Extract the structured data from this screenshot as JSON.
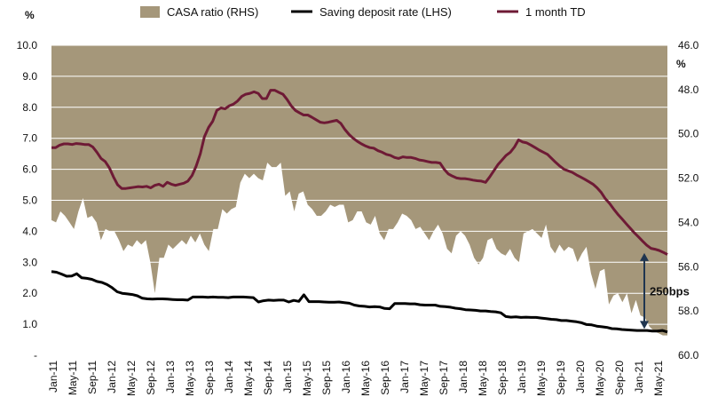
{
  "colors": {
    "casa_fill": "#a5977a",
    "saving_line": "#000000",
    "td_line": "#6e1a35",
    "grid": "#ffffff",
    "arrow": "#1f3550"
  },
  "chart_data": {
    "type": "line",
    "legend": {
      "placement": "top",
      "items": [
        "CASA ratio (RHS)",
        "Saving deposit rate (LHS)",
        "1 month TD"
      ]
    },
    "left_axis": {
      "unit": "%",
      "ylim": [
        0,
        10
      ],
      "tick_labels": [
        "-",
        "1.0",
        "2.0",
        "3.0",
        "4.0",
        "5.0",
        "6.0",
        "7.0",
        "8.0",
        "9.0",
        "10.0"
      ]
    },
    "right_axis": {
      "unit": "%",
      "ylim": [
        46,
        60
      ],
      "inverted": true,
      "tick_labels": [
        "46.0",
        "48.0",
        "50.0",
        "52.0",
        "54.0",
        "56.0",
        "58.0",
        "60.0"
      ]
    },
    "x_tick_labels": [
      "Jan-11",
      "May-11",
      "Sep-11",
      "Jan-12",
      "May-12",
      "Sep-12",
      "Jan-13",
      "May-13",
      "Sep-13",
      "Jan-14",
      "May-14",
      "Sep-14",
      "Jan-15",
      "May-15",
      "Sep-15",
      "Jan-16",
      "May-16",
      "Sep-16",
      "Jan-17",
      "May-17",
      "Sep-17",
      "Jan-18",
      "May-18",
      "Sep-18",
      "Jan-19",
      "May-19",
      "Sep-19",
      "Jan-20",
      "May-20",
      "Sep-20",
      "Jan-21",
      "May-21"
    ],
    "annotation": {
      "text": "250bps",
      "from": 3.3,
      "to": 0.85
    },
    "series": [
      {
        "name": "CASA ratio (RHS)",
        "type": "area",
        "axis": "right",
        "values": [
          53.9,
          54.0,
          53.5,
          53.7,
          54.0,
          54.3,
          53.5,
          52.9,
          53.8,
          53.7,
          54.0,
          54.8,
          54.3,
          54.4,
          54.4,
          54.8,
          55.3,
          55.0,
          55.1,
          54.8,
          55.0,
          54.8,
          55.8,
          57.2,
          55.6,
          55.6,
          55.0,
          55.2,
          55.0,
          54.8,
          55.0,
          54.6,
          54.9,
          54.5,
          55.0,
          55.3,
          54.3,
          54.3,
          53.4,
          53.6,
          53.4,
          53.3,
          52.2,
          51.8,
          52.0,
          51.8,
          52.0,
          52.1,
          51.3,
          51.5,
          51.5,
          51.3,
          52.8,
          52.6,
          53.5,
          52.7,
          52.6,
          53.2,
          53.4,
          53.7,
          53.7,
          53.5,
          53.2,
          53.3,
          53.2,
          53.2,
          54.0,
          53.9,
          53.5,
          53.5,
          54.0,
          54.1,
          53.7,
          54.5,
          54.8,
          54.3,
          54.3,
          54.0,
          53.6,
          53.7,
          53.9,
          54.3,
          54.2,
          54.5,
          54.8,
          54.4,
          54.1,
          54.5,
          55.2,
          55.4,
          54.6,
          54.4,
          54.6,
          55.0,
          55.6,
          55.9,
          55.6,
          54.8,
          54.7,
          55.2,
          55.4,
          55.5,
          55.2,
          55.6,
          55.8,
          54.5,
          54.4,
          54.3,
          54.5,
          54.7,
          54.1,
          55.1,
          55.4,
          55.0,
          55.3,
          55.1,
          55.2,
          55.8,
          55.4,
          55.1,
          56.3,
          57.0,
          56.2,
          56.1,
          57.7,
          57.3,
          57.2,
          57.6,
          57.2,
          58.1,
          57.5,
          58.2,
          58.3,
          58.7,
          58.9,
          59.0,
          59.1,
          59.1
        ]
      },
      {
        "name": "Saving deposit rate (LHS)",
        "type": "line",
        "axis": "left",
        "values": [
          2.7,
          2.68,
          2.62,
          2.55,
          2.56,
          2.63,
          2.5,
          2.48,
          2.45,
          2.38,
          2.35,
          2.28,
          2.18,
          2.05,
          2.0,
          1.98,
          1.96,
          1.92,
          1.84,
          1.82,
          1.81,
          1.82,
          1.82,
          1.81,
          1.8,
          1.79,
          1.79,
          1.78,
          1.88,
          1.88,
          1.88,
          1.87,
          1.88,
          1.87,
          1.87,
          1.86,
          1.88,
          1.88,
          1.88,
          1.87,
          1.86,
          1.72,
          1.76,
          1.78,
          1.77,
          1.78,
          1.78,
          1.72,
          1.77,
          1.74,
          1.95,
          1.73,
          1.73,
          1.73,
          1.72,
          1.71,
          1.71,
          1.72,
          1.7,
          1.68,
          1.62,
          1.59,
          1.58,
          1.56,
          1.57,
          1.56,
          1.51,
          1.5,
          1.67,
          1.67,
          1.67,
          1.66,
          1.66,
          1.63,
          1.62,
          1.62,
          1.62,
          1.58,
          1.57,
          1.55,
          1.52,
          1.5,
          1.47,
          1.46,
          1.45,
          1.43,
          1.43,
          1.41,
          1.4,
          1.37,
          1.25,
          1.23,
          1.24,
          1.22,
          1.23,
          1.22,
          1.22,
          1.2,
          1.18,
          1.16,
          1.15,
          1.12,
          1.12,
          1.1,
          1.08,
          1.05,
          0.99,
          0.98,
          0.94,
          0.92,
          0.9,
          0.86,
          0.85,
          0.83,
          0.82,
          0.81,
          0.8,
          0.8,
          0.8,
          0.78,
          0.78,
          0.8,
          0.75
        ]
      },
      {
        "name": "1 month TD",
        "type": "line",
        "axis": "left",
        "values": [
          6.7,
          6.7,
          6.78,
          6.82,
          6.82,
          6.8,
          6.83,
          6.82,
          6.8,
          6.8,
          6.72,
          6.55,
          6.35,
          6.25,
          6.05,
          5.75,
          5.5,
          5.38,
          5.38,
          5.4,
          5.42,
          5.44,
          5.43,
          5.45,
          5.4,
          5.48,
          5.52,
          5.45,
          5.58,
          5.52,
          5.48,
          5.52,
          5.55,
          5.62,
          5.8,
          6.1,
          6.5,
          7.05,
          7.35,
          7.55,
          7.9,
          7.98,
          7.95,
          8.05,
          8.1,
          8.2,
          8.35,
          8.42,
          8.45,
          8.5,
          8.45,
          8.28,
          8.28,
          8.55,
          8.55,
          8.48,
          8.42,
          8.25,
          8.05,
          7.9,
          7.82,
          7.75,
          7.75,
          7.68,
          7.6,
          7.52,
          7.5,
          7.52,
          7.55,
          7.58,
          7.48,
          7.28,
          7.12,
          7.0,
          6.9,
          6.82,
          6.75,
          6.7,
          6.68,
          6.6,
          6.55,
          6.48,
          6.45,
          6.38,
          6.35,
          6.4,
          6.38,
          6.38,
          6.35,
          6.3,
          6.28,
          6.25,
          6.22,
          6.22,
          6.2,
          6.0,
          5.85,
          5.78,
          5.72,
          5.7,
          5.7,
          5.68,
          5.65,
          5.63,
          5.62,
          5.58,
          5.75,
          5.95,
          6.15,
          6.3,
          6.45,
          6.55,
          6.72,
          6.95,
          6.88,
          6.85,
          6.78,
          6.7,
          6.62,
          6.55,
          6.48,
          6.35,
          6.22,
          6.1,
          6.0,
          5.95,
          5.9,
          5.82,
          5.75,
          5.68,
          5.6,
          5.52,
          5.4,
          5.25,
          5.05,
          4.9,
          4.72,
          4.55,
          4.4,
          4.25,
          4.1,
          3.95,
          3.82,
          3.68,
          3.55,
          3.45,
          3.42,
          3.38,
          3.32,
          3.25
        ]
      }
    ]
  }
}
